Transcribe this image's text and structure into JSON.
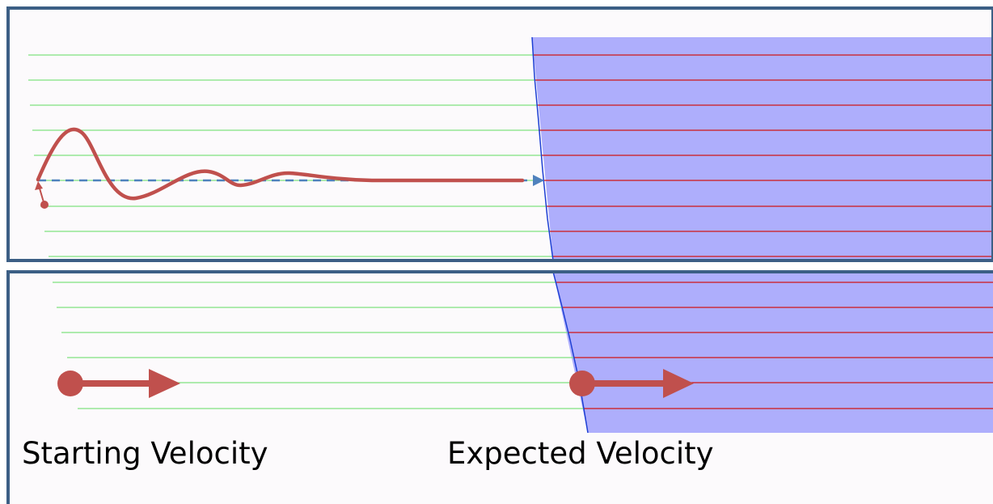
{
  "captions": {
    "starting": "Starting Velocity",
    "expected": "Expected Velocity"
  },
  "colors": {
    "panel_border": "#3c5f85",
    "panel_fill": "#fcfafc",
    "medium_fill": "#aeaefc",
    "medium_edge": "#1d3fd4",
    "line_outside": "#7fe27f",
    "line_inside": "#d01717",
    "trajectory": "#c0504d",
    "dashed_path": "#4f81bd"
  }
}
